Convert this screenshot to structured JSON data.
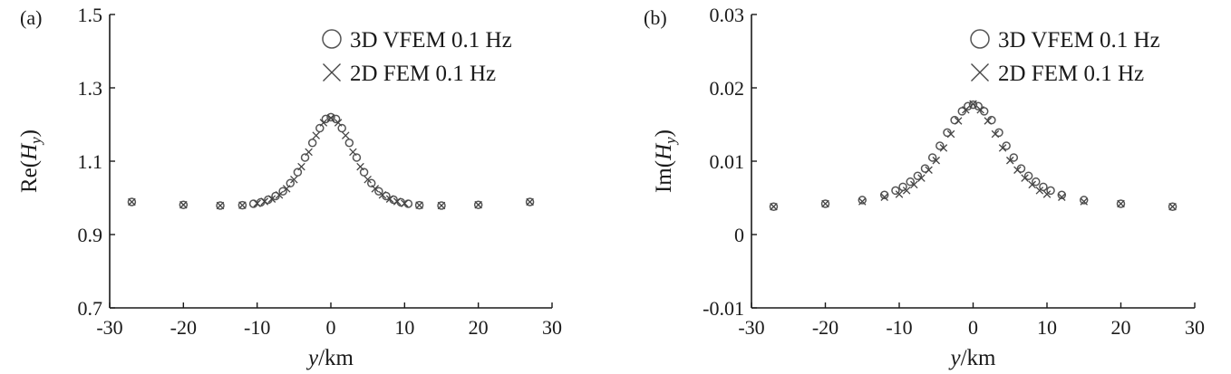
{
  "chart_data": [
    {
      "type": "scatter",
      "panel_label": "(a)",
      "xlabel_italic": "y",
      "xlabel_rest": "/km",
      "ylabel": {
        "pre": "Re(",
        "var": "H",
        "sub": "y",
        "post": ")"
      },
      "xlim": [
        -30,
        30
      ],
      "ylim": [
        0.7,
        1.5
      ],
      "xticks": [
        "-30",
        "-20",
        "-10",
        "0",
        "10",
        "20",
        "30"
      ],
      "yticks": [
        "0.7",
        "0.9",
        "1.1",
        "1.3",
        "1.5"
      ],
      "grid": false,
      "legend_position": "top-right",
      "series": [
        {
          "name": "3D VFEM 0.1 Hz",
          "marker": "circle",
          "x": [
            -27,
            -20,
            -15,
            -12,
            -10.5,
            -9.5,
            -8.5,
            -7.5,
            -6.5,
            -5.5,
            -4.5,
            -3.5,
            -2.5,
            -1.5,
            -0.7,
            0,
            0.7,
            1.5,
            2.5,
            3.5,
            4.5,
            5.5,
            6.5,
            7.5,
            8.5,
            9.5,
            10.5,
            12,
            15,
            20,
            27
          ],
          "y": [
            0.989,
            0.981,
            0.979,
            0.98,
            0.984,
            0.988,
            0.995,
            1.005,
            1.018,
            1.04,
            1.07,
            1.11,
            1.15,
            1.19,
            1.215,
            1.22,
            1.215,
            1.19,
            1.15,
            1.11,
            1.07,
            1.04,
            1.018,
            1.005,
            0.995,
            0.988,
            0.984,
            0.98,
            0.979,
            0.981,
            0.989
          ]
        },
        {
          "name": "2D FEM 0.1 Hz",
          "marker": "cross",
          "x": [
            -27,
            -20,
            -15,
            -12,
            -10,
            -9,
            -8,
            -7,
            -6,
            -5,
            -4,
            -3,
            -2,
            -1,
            0,
            1,
            2,
            3,
            4,
            5,
            6,
            7,
            8,
            9,
            10,
            12,
            15,
            20,
            27
          ],
          "y": [
            0.989,
            0.981,
            0.979,
            0.98,
            0.985,
            0.99,
            0.997,
            1.008,
            1.025,
            1.05,
            1.085,
            1.125,
            1.17,
            1.205,
            1.218,
            1.205,
            1.17,
            1.125,
            1.085,
            1.05,
            1.025,
            1.008,
            0.997,
            0.99,
            0.985,
            0.98,
            0.979,
            0.981,
            0.989
          ]
        }
      ]
    },
    {
      "type": "scatter",
      "panel_label": "(b)",
      "xlabel_italic": "y",
      "xlabel_rest": "/km",
      "ylabel": {
        "pre": "Im(",
        "var": "H",
        "sub": "y",
        "post": ")"
      },
      "xlim": [
        -30,
        30
      ],
      "ylim": [
        -0.01,
        0.03
      ],
      "xticks": [
        "-30",
        "-20",
        "-10",
        "0",
        "10",
        "20",
        "30"
      ],
      "yticks": [
        "-0.01",
        "0",
        "0.01",
        "0.02",
        "0.03"
      ],
      "grid": false,
      "legend_position": "top-right",
      "series": [
        {
          "name": "3D VFEM 0.1 Hz",
          "marker": "circle",
          "x": [
            -27,
            -20,
            -15,
            -12,
            -10.5,
            -9.5,
            -8.5,
            -7.5,
            -6.5,
            -5.5,
            -4.5,
            -3.5,
            -2.5,
            -1.5,
            -0.7,
            0,
            0.7,
            1.5,
            2.5,
            3.5,
            4.5,
            5.5,
            6.5,
            7.5,
            8.5,
            9.5,
            10.5,
            12,
            15,
            20,
            27
          ],
          "y": [
            0.0038,
            0.0042,
            0.0047,
            0.0054,
            0.006,
            0.0065,
            0.0072,
            0.008,
            0.009,
            0.0105,
            0.0121,
            0.0139,
            0.0156,
            0.0168,
            0.0175,
            0.0177,
            0.0175,
            0.0168,
            0.0156,
            0.0139,
            0.0121,
            0.0105,
            0.009,
            0.008,
            0.0072,
            0.0065,
            0.006,
            0.0054,
            0.0047,
            0.0042,
            0.0038
          ]
        },
        {
          "name": "2D FEM 0.1 Hz",
          "marker": "cross",
          "x": [
            -27,
            -20,
            -15,
            -12,
            -10,
            -9,
            -8,
            -7,
            -6,
            -5,
            -4,
            -3,
            -2,
            -1,
            0,
            1,
            2,
            3,
            4,
            5,
            6,
            7,
            8,
            9,
            10,
            12,
            15,
            20,
            27
          ],
          "y": [
            0.0038,
            0.0042,
            0.0045,
            0.0051,
            0.0055,
            0.006,
            0.0068,
            0.0077,
            0.0088,
            0.0101,
            0.0118,
            0.0137,
            0.0155,
            0.017,
            0.0178,
            0.017,
            0.0155,
            0.0137,
            0.0118,
            0.0101,
            0.0088,
            0.0077,
            0.0068,
            0.006,
            0.0055,
            0.0051,
            0.0045,
            0.0042,
            0.0038
          ]
        }
      ]
    }
  ]
}
